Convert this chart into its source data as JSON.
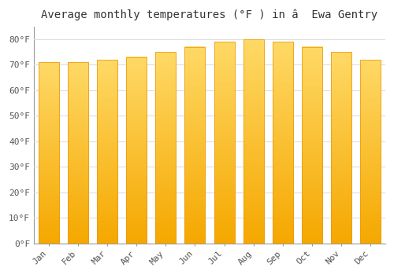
{
  "title": "Average monthly temperatures (°F ) in â  Ewa Gentry",
  "months": [
    "Jan",
    "Feb",
    "Mar",
    "Apr",
    "May",
    "Jun",
    "Jul",
    "Aug",
    "Sep",
    "Oct",
    "Nov",
    "Dec"
  ],
  "values": [
    71,
    71,
    72,
    73,
    75,
    77,
    79,
    80,
    79,
    77,
    75,
    72
  ],
  "bar_color_bottom": "#F5A800",
  "bar_color_top": "#FFD966",
  "background_color": "#FFFFFF",
  "grid_color": "#DDDDDD",
  "ylim": [
    0,
    85
  ],
  "yticks": [
    0,
    10,
    20,
    30,
    40,
    50,
    60,
    70,
    80
  ],
  "title_fontsize": 10,
  "tick_fontsize": 8,
  "font_family": "monospace"
}
